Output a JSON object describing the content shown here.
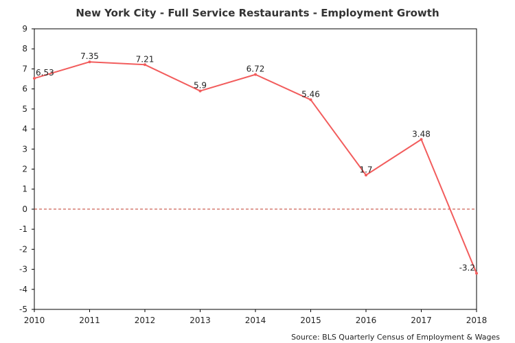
{
  "chart_data": {
    "type": "line",
    "title": "New York City - Full Service Restaurants - Employment Growth",
    "xlabel": "",
    "ylabel": "",
    "categories": [
      "2010",
      "2011",
      "2012",
      "2013",
      "2014",
      "2015",
      "2016",
      "2017",
      "2018"
    ],
    "series": [
      {
        "values": [
          6.53,
          7.35,
          7.21,
          5.9,
          6.72,
          5.46,
          1.7,
          3.48,
          -3.2
        ],
        "labels": [
          "6.53",
          "7.35",
          "7.21",
          "5.9",
          "6.72",
          "5.46",
          "1.7",
          "3.48",
          "-3.2"
        ],
        "color": "#f25c5c"
      }
    ],
    "ylim": [
      -5,
      9
    ],
    "yticks": [
      "-5",
      "-4",
      "-3",
      "-2",
      "-1",
      "0",
      "1",
      "2",
      "3",
      "4",
      "5",
      "6",
      "7",
      "8",
      "9"
    ],
    "reference_line": {
      "value": 0,
      "style": "dashed",
      "color": "#c0392b"
    },
    "grid": false,
    "legend": "none",
    "source": "Source: BLS Quarterly Census of Employment & Wages"
  }
}
